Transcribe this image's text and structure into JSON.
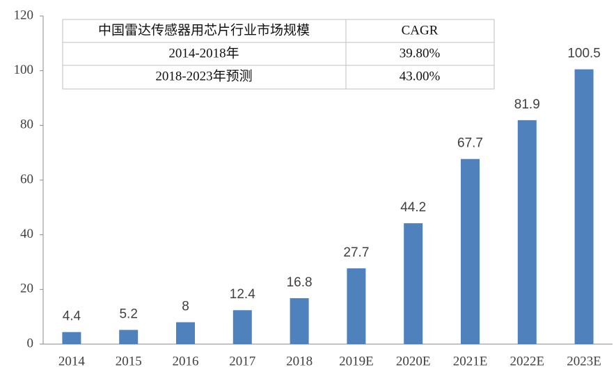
{
  "chart_data": {
    "type": "bar",
    "categories": [
      "2014",
      "2015",
      "2016",
      "2017",
      "2018",
      "2019E",
      "2020E",
      "2021E",
      "2022E",
      "2023E"
    ],
    "values": [
      4.4,
      5.2,
      8,
      12.4,
      16.8,
      27.7,
      44.2,
      67.7,
      81.9,
      100.5
    ],
    "color": "#4f81bd",
    "ylim": [
      0,
      120
    ],
    "yticks": [
      0,
      20,
      40,
      60,
      80,
      100,
      120
    ],
    "grid": false,
    "table": {
      "header": [
        "中国雷达传感器用芯片行业市场规模",
        "CAGR"
      ],
      "rows": [
        [
          "2014-2018年",
          "39.80%"
        ],
        [
          "2018-2023年预测",
          "43.00%"
        ]
      ]
    }
  }
}
